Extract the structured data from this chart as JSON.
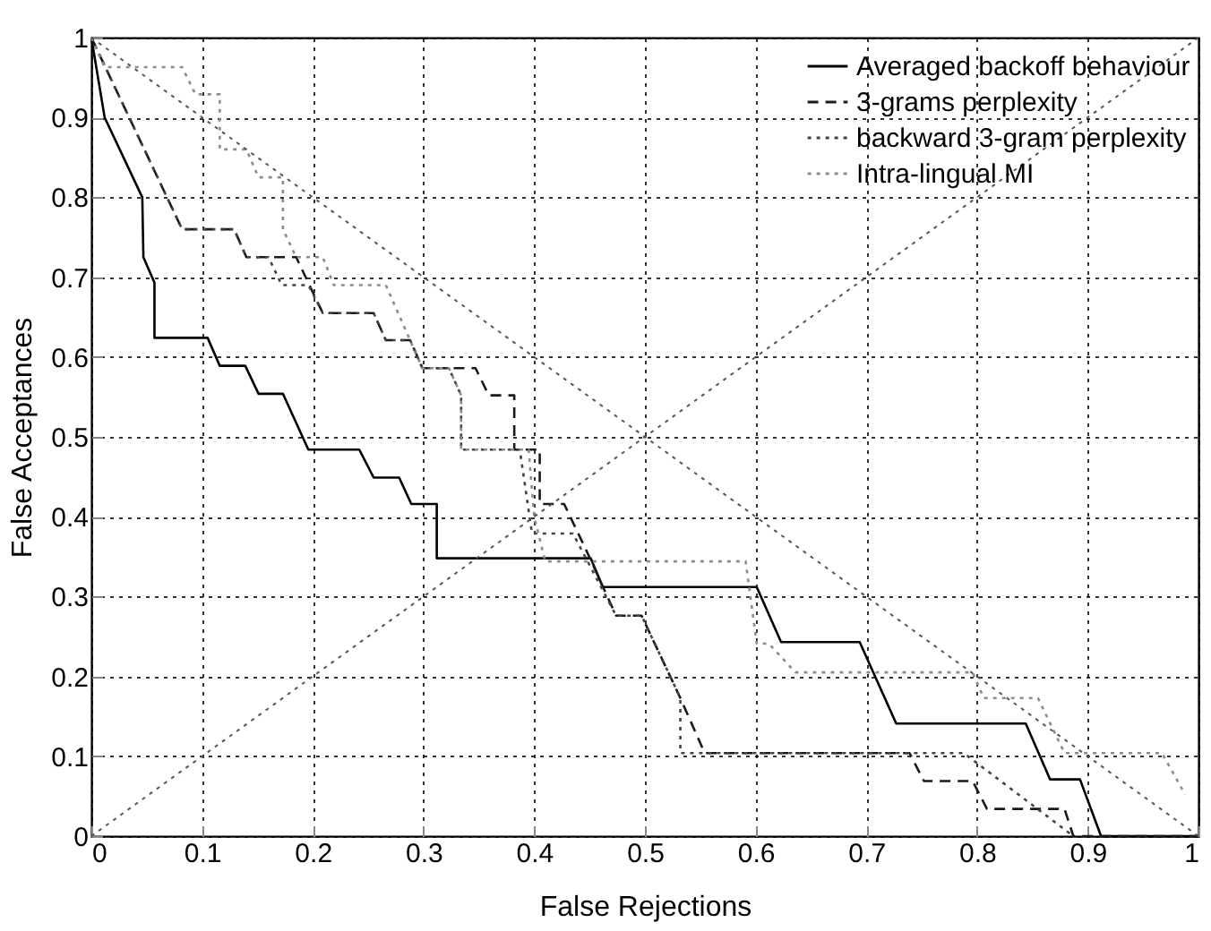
{
  "chart_data": {
    "type": "line",
    "xlabel": "False Rejections",
    "ylabel": "False Acceptances",
    "xlim": [
      0,
      1
    ],
    "ylim": [
      0,
      1
    ],
    "xticks": [
      0,
      0.1,
      0.2,
      0.3,
      0.4,
      0.5,
      0.6,
      0.7,
      0.8,
      0.9,
      1
    ],
    "yticks": [
      0,
      0.1,
      0.2,
      0.3,
      0.4,
      0.5,
      0.6,
      0.7,
      0.8,
      0.9,
      1
    ],
    "grid": true,
    "legend": "top right",
    "marker": "none",
    "series": [
      {
        "name": "Averaged backoff behaviour",
        "color": "#000000",
        "line_style": "solid",
        "x": [
          0,
          0.012,
          0.046,
          0.047,
          0.057,
          0.057,
          0.105,
          0.116,
          0.139,
          0.151,
          0.173,
          0.196,
          0.242,
          0.255,
          0.278,
          0.289,
          0.312,
          0.312,
          0.451,
          0.462,
          0.601,
          0.623,
          0.694,
          0.727,
          0.844,
          0.866,
          0.893,
          0.912,
          1
        ],
        "values": [
          1,
          0.9,
          0.8,
          0.725,
          0.693,
          0.624,
          0.624,
          0.589,
          0.589,
          0.554,
          0.554,
          0.484,
          0.484,
          0.449,
          0.449,
          0.416,
          0.416,
          0.348,
          0.348,
          0.312,
          0.312,
          0.243,
          0.243,
          0.141,
          0.141,
          0.071,
          0.071,
          0,
          0
        ]
      },
      {
        "name": "3-grams perplexity",
        "color": "#1a1a1a",
        "line_style": "dashed",
        "x": [
          0,
          0.082,
          0.129,
          0.14,
          0.185,
          0.209,
          0.255,
          0.266,
          0.288,
          0.299,
          0.347,
          0.359,
          0.382,
          0.382,
          0.405,
          0.405,
          0.427,
          0.446,
          0.474,
          0.497,
          0.532,
          0.554,
          0.739,
          0.752,
          0.796,
          0.809,
          0.879,
          0.887,
          1
        ],
        "values": [
          1,
          0.76,
          0.76,
          0.725,
          0.725,
          0.655,
          0.655,
          0.621,
          0.621,
          0.586,
          0.586,
          0.552,
          0.552,
          0.484,
          0.484,
          0.416,
          0.416,
          0.361,
          0.276,
          0.276,
          0.173,
          0.104,
          0.104,
          0.069,
          0.069,
          0.034,
          0.034,
          0,
          0
        ]
      },
      {
        "name": "backward 3-gram perplexity",
        "color": "#444444",
        "line_style": "dotted",
        "x": [
          0,
          0.082,
          0.129,
          0.14,
          0.16,
          0.172,
          0.196,
          0.209,
          0.255,
          0.266,
          0.288,
          0.299,
          0.323,
          0.334,
          0.334,
          0.387,
          0.398,
          0.435,
          0.474,
          0.497,
          0.532,
          0.532,
          0.788,
          0.887
        ],
        "values": [
          1,
          0.76,
          0.76,
          0.725,
          0.725,
          0.69,
          0.69,
          0.655,
          0.655,
          0.621,
          0.621,
          0.586,
          0.586,
          0.552,
          0.484,
          0.484,
          0.379,
          0.379,
          0.276,
          0.276,
          0.173,
          0.104,
          0.104,
          0
        ]
      },
      {
        "name": "Intra-lingual MI",
        "color": "#8c8c8c",
        "line_style": "dotted",
        "x": [
          0,
          0.012,
          0.082,
          0.094,
          0.116,
          0.116,
          0.14,
          0.151,
          0.173,
          0.173,
          0.185,
          0.209,
          0.219,
          0.266,
          0.299,
          0.323,
          0.334,
          0.334,
          0.395,
          0.4,
          0.41,
          0.591,
          0.601,
          0.612,
          0.636,
          0.796,
          0.806,
          0.855,
          0.879,
          0.967,
          0.988
        ],
        "values": [
          1,
          0.963,
          0.963,
          0.929,
          0.929,
          0.86,
          0.86,
          0.825,
          0.825,
          0.76,
          0.725,
          0.725,
          0.69,
          0.69,
          0.586,
          0.586,
          0.552,
          0.484,
          0.484,
          0.4,
          0.344,
          0.344,
          0.241,
          0.241,
          0.205,
          0.205,
          0.173,
          0.173,
          0.104,
          0.104,
          0.052
        ]
      },
      {
        "color": "#555555",
        "line_style": "dotted",
        "x": [
          0,
          1
        ],
        "values": [
          0,
          1
        ]
      },
      {
        "color": "#555555",
        "line_style": "dotted",
        "x": [
          0,
          1
        ],
        "values": [
          1,
          0
        ]
      }
    ]
  }
}
